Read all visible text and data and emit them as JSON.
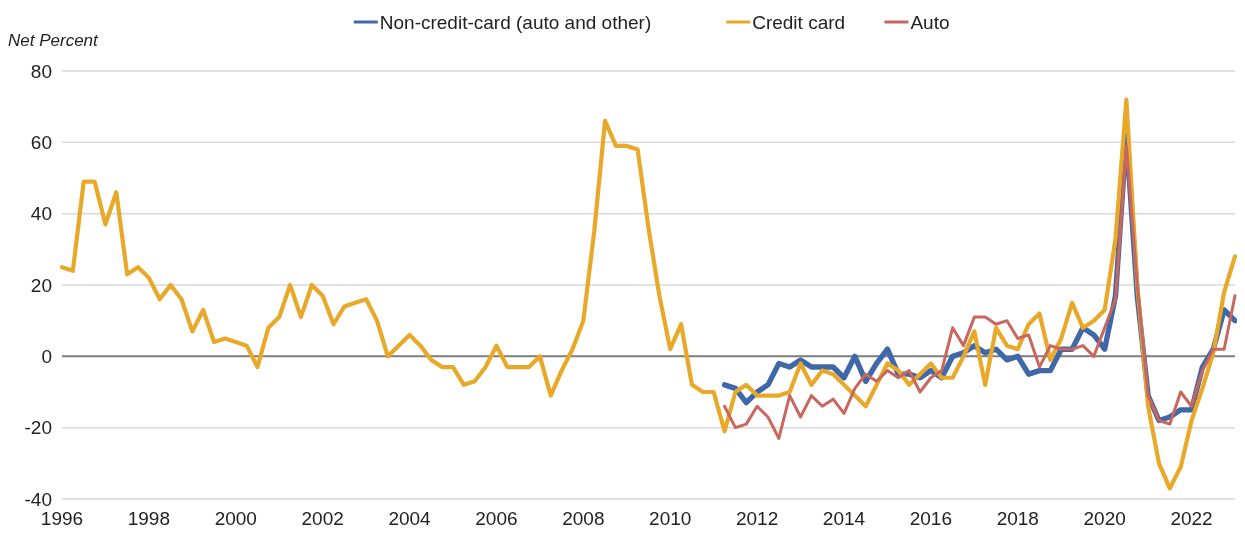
{
  "chart_data": {
    "type": "line",
    "ylabel": "Net Percent",
    "xlim": [
      1996,
      2023
    ],
    "xticks": [
      1996,
      1998,
      2000,
      2002,
      2004,
      2006,
      2008,
      2010,
      2012,
      2014,
      2016,
      2018,
      2020,
      2022
    ],
    "ylim": [
      -40,
      80
    ],
    "yticks": [
      -40,
      -20,
      0,
      20,
      40,
      60,
      80
    ],
    "grid": "y",
    "legend": "top",
    "series": [
      {
        "name": "Non-credit-card (auto and other)",
        "color": "#3f68a8",
        "x": [
          2011.25,
          2011.5,
          2011.75,
          2012,
          2012.25,
          2012.5,
          2012.75,
          2013,
          2013.25,
          2013.5,
          2013.75,
          2014,
          2014.25,
          2014.5,
          2014.75,
          2015,
          2015.25,
          2015.5,
          2015.75,
          2016,
          2016.25,
          2016.5,
          2016.75,
          2017,
          2017.25,
          2017.5,
          2017.75,
          2018,
          2018.25,
          2018.5,
          2018.75,
          2019,
          2019.25,
          2019.5,
          2019.75,
          2020,
          2020.25,
          2020.5,
          2020.75,
          2021,
          2021.25,
          2021.5,
          2021.75,
          2022,
          2022.25,
          2022.5,
          2022.75,
          2023
        ],
        "values": [
          -8,
          -9,
          -13,
          -10,
          -8,
          -2,
          -3,
          -1,
          -3,
          -3,
          -3,
          -6,
          0,
          -7,
          -2,
          2,
          -5,
          -5,
          -6,
          -4,
          -6,
          0,
          1,
          3,
          1,
          2,
          -1,
          0,
          -5,
          -4,
          -4,
          2,
          2,
          8,
          6,
          2,
          17,
          62,
          17,
          -11,
          -18,
          -17,
          -15,
          -15,
          -3,
          2,
          13,
          10
        ]
      },
      {
        "name": "Credit card",
        "color": "#e8a92a",
        "x": [
          1996,
          1996.25,
          1996.5,
          1996.75,
          1997,
          1997.25,
          1997.5,
          1997.75,
          1998,
          1998.25,
          1998.5,
          1998.75,
          1999,
          1999.25,
          1999.5,
          1999.75,
          2000,
          2000.25,
          2000.5,
          2000.75,
          2001,
          2001.25,
          2001.5,
          2001.75,
          2002,
          2002.25,
          2002.5,
          2002.75,
          2003,
          2003.25,
          2003.5,
          2003.75,
          2004,
          2004.25,
          2004.5,
          2004.75,
          2005,
          2005.25,
          2005.5,
          2005.75,
          2006,
          2006.25,
          2006.5,
          2006.75,
          2007,
          2007.25,
          2007.5,
          2007.75,
          2008,
          2008.25,
          2008.5,
          2008.75,
          2009,
          2009.25,
          2009.5,
          2009.75,
          2010,
          2010.25,
          2010.5,
          2010.75,
          2011,
          2011.25,
          2011.5,
          2011.75,
          2012,
          2012.25,
          2012.5,
          2012.75,
          2013,
          2013.25,
          2013.5,
          2013.75,
          2014,
          2014.25,
          2014.5,
          2014.75,
          2015,
          2015.25,
          2015.5,
          2015.75,
          2016,
          2016.25,
          2016.5,
          2016.75,
          2017,
          2017.25,
          2017.5,
          2017.75,
          2018,
          2018.25,
          2018.5,
          2018.75,
          2019,
          2019.25,
          2019.5,
          2019.75,
          2020,
          2020.25,
          2020.5,
          2020.75,
          2021,
          2021.25,
          2021.5,
          2021.75,
          2022,
          2022.25,
          2022.5,
          2022.75,
          2023
        ],
        "values": [
          25,
          24,
          49,
          49,
          37,
          46,
          23,
          25,
          22,
          16,
          20,
          16,
          7,
          13,
          4,
          5,
          4,
          3,
          -3,
          8,
          11,
          20,
          11,
          20,
          17,
          9,
          14,
          15,
          16,
          10,
          0,
          3,
          6,
          3,
          -1,
          -3,
          -3,
          -8,
          -7,
          -3,
          3,
          -3,
          -3,
          -3,
          0,
          -11,
          -4,
          2,
          10,
          35,
          66,
          59,
          59,
          58,
          36,
          17,
          2,
          9,
          -8,
          -10,
          -10,
          -21,
          -10,
          -8,
          -11,
          -11,
          -11,
          -10,
          -2,
          -8,
          -4,
          -5,
          -8,
          -11,
          -14,
          -8,
          -2,
          -4,
          -8,
          -5,
          -2,
          -6,
          -6,
          0,
          7,
          -8,
          8,
          3,
          2,
          9,
          12,
          -1,
          5,
          15,
          8,
          10,
          13,
          33,
          72,
          20,
          -14,
          -30,
          -37,
          -31,
          -18,
          -9,
          1,
          18,
          28
        ]
      },
      {
        "name": "Auto",
        "color": "#c8675e",
        "x": [
          2011.25,
          2011.5,
          2011.75,
          2012,
          2012.25,
          2012.5,
          2012.75,
          2013,
          2013.25,
          2013.5,
          2013.75,
          2014,
          2014.25,
          2014.5,
          2014.75,
          2015,
          2015.25,
          2015.5,
          2015.75,
          2016,
          2016.25,
          2016.5,
          2016.75,
          2017,
          2017.25,
          2017.5,
          2017.75,
          2018,
          2018.25,
          2018.5,
          2018.75,
          2019,
          2019.25,
          2019.5,
          2019.75,
          2020,
          2020.25,
          2020.5,
          2020.75,
          2021,
          2021.25,
          2021.5,
          2021.75,
          2022,
          2022.25,
          2022.5,
          2022.75,
          2023
        ],
        "values": [
          -14,
          -20,
          -19,
          -14,
          -17,
          -23,
          -11,
          -17,
          -11,
          -14,
          -12,
          -16,
          -9,
          -5,
          -7,
          -4,
          -6,
          -4,
          -10,
          -6,
          -4,
          8,
          3,
          11,
          11,
          9,
          10,
          5,
          6,
          -3,
          3,
          2,
          2,
          3,
          0,
          8,
          16,
          59,
          20,
          -11,
          -18,
          -19,
          -10,
          -14,
          -4,
          2,
          2,
          17
        ]
      }
    ]
  }
}
